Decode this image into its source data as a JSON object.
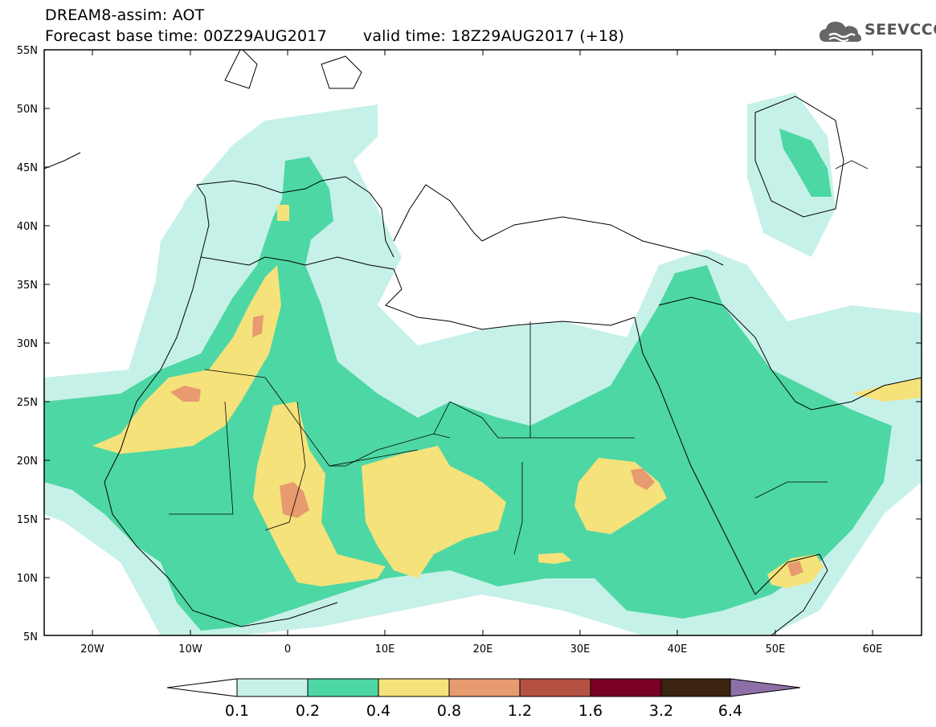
{
  "header": {
    "title": "DREAM8-assim: AOT",
    "forecast_base": "Forecast base time: 00Z29AUG2017",
    "valid_time": "valid time: 18Z29AUG2017 (+18)"
  },
  "logo": {
    "text": "SEEVCCC",
    "icon": "cloud-icon"
  },
  "map": {
    "lat_labels": [
      "55N",
      "50N",
      "45N",
      "40N",
      "35N",
      "30N",
      "25N",
      "20N",
      "15N",
      "10N",
      "5N"
    ],
    "lon_labels": [
      "20W",
      "10W",
      "0",
      "10E",
      "20E",
      "30E",
      "40E",
      "50E",
      "60E"
    ],
    "lat_range": [
      5,
      55
    ],
    "lon_range": [
      -25,
      65
    ],
    "grid": false
  },
  "legend": {
    "labels": [
      "0.1",
      "0.2",
      "0.4",
      "0.8",
      "1.2",
      "1.6",
      "3.2",
      "6.4"
    ],
    "colors": [
      "#ffffff",
      "#c6f1e8",
      "#4dd7a4",
      "#f5e27a",
      "#e89a70",
      "#b45142",
      "#7a0023",
      "#3b2410",
      "#8e6fa8"
    ]
  }
}
